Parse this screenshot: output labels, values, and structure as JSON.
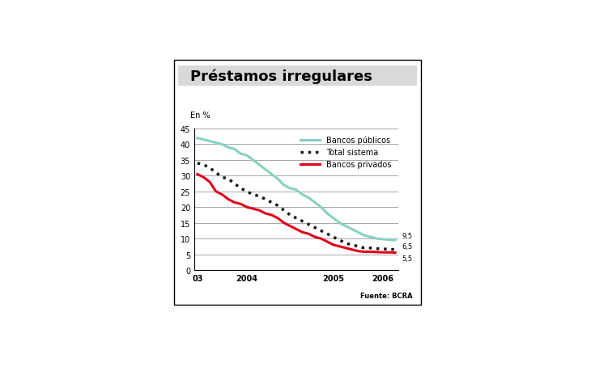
{
  "chart_data": {
    "type": "line",
    "title": "Préstamos irregulares",
    "y_label": "En %",
    "source": "Fuente: BCRA",
    "categories": [
      "03",
      null,
      null,
      null,
      null,
      null,
      null,
      null,
      "2004",
      null,
      null,
      null,
      null,
      null,
      null,
      null,
      null,
      null,
      null,
      null,
      null,
      null,
      "2005",
      null,
      null,
      null,
      null,
      null,
      null,
      null,
      "2006",
      null,
      null
    ],
    "series": [
      {
        "name": "Bancos públicos",
        "color": "#86d1c3",
        "line_style": "solid",
        "values": [
          42,
          41.5,
          41,
          40.5,
          40,
          39,
          38.5,
          37,
          36.5,
          35,
          33.5,
          32,
          30.5,
          29,
          27,
          26,
          25.5,
          24,
          23,
          21.5,
          20,
          18,
          16.5,
          15,
          14,
          13,
          12,
          11,
          10.5,
          10,
          9.8,
          9.6,
          9.5
        ],
        "value_labels": [
          null,
          null,
          null,
          null,
          null,
          null,
          null,
          null,
          null,
          null,
          null,
          null,
          null,
          null,
          null,
          null,
          null,
          null,
          null,
          null,
          null,
          null,
          null,
          null,
          null,
          null,
          null,
          null,
          null,
          null,
          null,
          null,
          "9,5"
        ]
      },
      {
        "name": "Total sistema",
        "color": "#1a1a1a",
        "line_style": "dotted",
        "values": [
          34,
          33.5,
          32.5,
          31,
          29.5,
          29,
          27.5,
          26,
          25,
          24,
          23.5,
          22.5,
          21.5,
          20.5,
          19,
          17.5,
          16.5,
          15.5,
          14.5,
          13.5,
          12.5,
          11.5,
          10.5,
          9.5,
          8.5,
          8,
          7.5,
          7,
          7,
          6.8,
          6.7,
          6.6,
          6.5
        ],
        "value_labels": [
          null,
          null,
          null,
          null,
          null,
          null,
          null,
          null,
          null,
          null,
          null,
          null,
          null,
          null,
          null,
          null,
          null,
          null,
          null,
          null,
          null,
          null,
          null,
          null,
          null,
          null,
          null,
          null,
          null,
          null,
          null,
          null,
          "6,5"
        ]
      },
      {
        "name": "Bancos privados",
        "color": "#e2001a",
        "line_style": "solid",
        "values": [
          30.5,
          29.5,
          28,
          25,
          24,
          22.5,
          21.5,
          21,
          20,
          19.5,
          19,
          18,
          17.5,
          16.5,
          15,
          14,
          13,
          12,
          11.5,
          10.5,
          10,
          9,
          8,
          7.5,
          7,
          6.5,
          6,
          5.8,
          5.8,
          5.7,
          5.6,
          5.6,
          5.5
        ],
        "value_labels": [
          null,
          null,
          null,
          null,
          null,
          null,
          null,
          null,
          null,
          null,
          null,
          null,
          null,
          null,
          null,
          null,
          null,
          null,
          null,
          null,
          null,
          null,
          null,
          null,
          null,
          null,
          null,
          null,
          null,
          null,
          null,
          null,
          "5,5"
        ]
      }
    ],
    "ylim": [
      0,
      45
    ],
    "yticks": [
      0,
      5,
      10,
      15,
      20,
      25,
      30,
      35,
      40,
      45
    ],
    "grid": true,
    "legend": "upper right",
    "data_labels": true
  }
}
